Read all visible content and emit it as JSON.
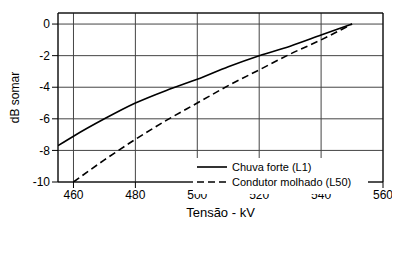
{
  "chart_data": {
    "type": "line",
    "x_label": "Tensão - kV",
    "y_label": "dB somar",
    "x": [
      455,
      460,
      470,
      480,
      490,
      500,
      510,
      520,
      530,
      540,
      550
    ],
    "series": [
      {
        "name": "Chuva forte (L1)",
        "color": "#000000",
        "line_style": "solid",
        "values": [
          -7.7,
          -7.1,
          -6.0,
          -5.0,
          -4.2,
          -3.5,
          -2.7,
          -2.0,
          -1.4,
          -0.7,
          0
        ]
      },
      {
        "name": "Condutor molhado (L50)",
        "color": "#000000",
        "line_style": "dashed",
        "values": [
          null,
          -10,
          -8.6,
          -7.3,
          -6.1,
          -5.0,
          -3.9,
          -2.9,
          -1.9,
          -1.0,
          0
        ]
      }
    ],
    "xlim": [
      455,
      560
    ],
    "ylim": [
      -10,
      0.7
    ],
    "xticks": [
      460,
      480,
      500,
      520,
      540,
      560
    ],
    "yticks": [
      -10,
      -8,
      -6,
      -4,
      -2,
      0
    ],
    "grid": true,
    "legend": "lower right"
  }
}
